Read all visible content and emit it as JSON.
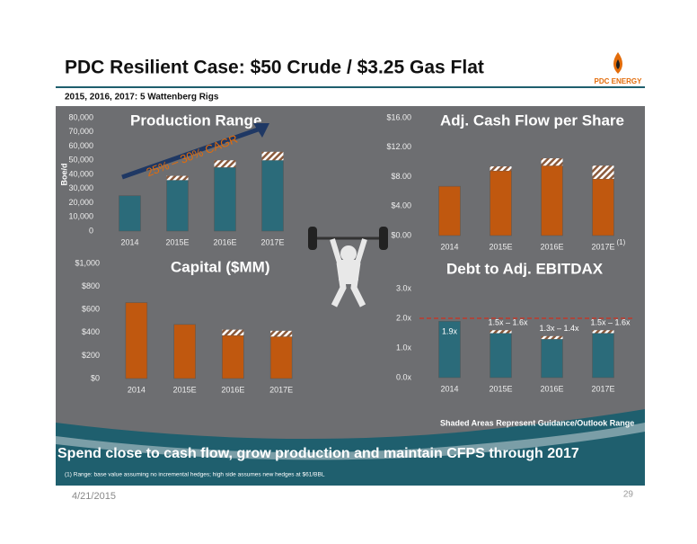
{
  "header": {
    "title": "PDC Resilient Case: $50 Crude / $3.25 Gas Flat",
    "subtitle": "2015, 2016, 2017:  5 Wattenberg Rigs",
    "logo": "PDC ENERGY"
  },
  "chart_data": [
    {
      "type": "bar",
      "stacked": true,
      "title": "Production Range",
      "ylabel": "Boe/d",
      "annotation": "25% – 30% CAGR",
      "annotation_color": "#e36c0a",
      "categories": [
        "2014",
        "2015E",
        "2016E",
        "2017E"
      ],
      "series": [
        {
          "color": "#2b6b7a",
          "values": [
            25000,
            36000,
            45000,
            50000
          ]
        },
        {
          "color": "#2b6b7a",
          "hatch": true,
          "values": [
            null,
            3000,
            5000,
            6000
          ]
        }
      ],
      "ylim": [
        0,
        80000
      ],
      "yticks": [
        0,
        {
          "value": 10000,
          "label": "10,000"
        },
        {
          "value": 20000,
          "label": "20,000"
        },
        {
          "value": 30000,
          "label": "30,000"
        },
        {
          "value": 40000,
          "label": "40,000"
        },
        {
          "value": 50000,
          "label": "50,000"
        },
        {
          "value": 60000,
          "label": "60,000"
        },
        {
          "value": 70000,
          "label": "70,000"
        },
        {
          "value": 80000,
          "label": "80,000"
        }
      ]
    },
    {
      "type": "bar",
      "stacked": true,
      "title": "Adj. Cash Flow per Share",
      "marker": "(1)",
      "categories": [
        "2014",
        "2015E",
        "2016E",
        "2017E"
      ],
      "series": [
        {
          "color": "#c0580f",
          "values": [
            6.7,
            8.8,
            9.5,
            7.7
          ]
        },
        {
          "color": "#c0580f",
          "hatch": true,
          "values": [
            null,
            0.6,
            1.0,
            1.8
          ]
        }
      ],
      "ylim": [
        0,
        16
      ],
      "yticks": [
        {
          "value": 0,
          "label": "$0.00"
        },
        {
          "value": 4,
          "label": "$4.00"
        },
        {
          "value": 8,
          "label": "$8.00"
        },
        {
          "value": 12,
          "label": "$12.00"
        },
        {
          "value": 16,
          "label": "$16.00"
        }
      ]
    },
    {
      "type": "bar",
      "stacked": true,
      "title": "Capital ($MM)",
      "categories": [
        "2014",
        "2015E",
        "2016E",
        "2017E"
      ],
      "series": [
        {
          "color": "#c0580f",
          "values": [
            660,
            470,
            375,
            365
          ]
        },
        {
          "color": "#c0580f",
          "hatch": true,
          "values": [
            null,
            null,
            50,
            50
          ]
        }
      ],
      "ylim": [
        0,
        1000
      ],
      "yticks": [
        {
          "value": 0,
          "label": "$0"
        },
        {
          "value": 200,
          "label": "$200"
        },
        {
          "value": 400,
          "label": "$400"
        },
        {
          "value": 600,
          "label": "$600"
        },
        {
          "value": 800,
          "label": "$800"
        },
        {
          "value": 1000,
          "label": "$1,000"
        }
      ]
    },
    {
      "type": "bar",
      "stacked": true,
      "title": "Debt to Adj. EBITDAX",
      "reference_line": 2,
      "reference_color": "#c0392b",
      "categories": [
        "2014",
        "2015E",
        "2016E",
        "2017E"
      ],
      "series": [
        {
          "color": "#2b6b7a",
          "values": [
            1.9,
            1.5,
            1.3,
            1.5
          ],
          "value_labels": [
            "1.9x",
            "1.5x – 1.6x",
            "1.3x – 1.4x",
            "1.5x – 1.6x"
          ]
        },
        {
          "color": "#2b6b7a",
          "hatch": true,
          "values": [
            null,
            0.1,
            0.1,
            0.1
          ]
        }
      ],
      "ylim": [
        0,
        3
      ],
      "yticks": [
        {
          "value": 0,
          "label": "0.0x"
        },
        {
          "value": 1,
          "label": "1.0x"
        },
        {
          "value": 2,
          "label": "2.0x"
        },
        {
          "value": 3,
          "label": "3.0x"
        }
      ]
    }
  ],
  "note": "Shaded Areas Represent Guidance/Outlook Range",
  "tagline": "Spend close to cash flow, grow production and maintain CFPS through 2017",
  "footnote": "(1) Range: base value assuming no incremental hedges; high side assumes new hedges at $61/BBL",
  "footer": {
    "date": "4/21/2015",
    "page": "29"
  }
}
